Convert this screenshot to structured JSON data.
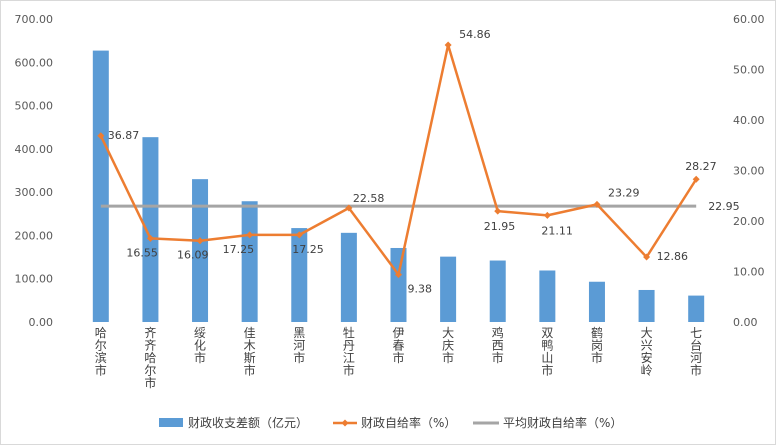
{
  "chart_data": {
    "type": "bar",
    "categories": [
      "哈尔滨市",
      "齐齐哈尔市",
      "绥化市",
      "佳木斯市",
      "黑河市",
      "牡丹江市",
      "伊春市",
      "大庆市",
      "鸡西市",
      "双鸭山市",
      "鹤岗市",
      "大兴安岭",
      "七台河市"
    ],
    "series": [
      {
        "name": "财政收支差额（亿元）",
        "type": "bar",
        "axis": "left",
        "color": "#5B9BD5",
        "values": [
          627,
          427,
          330,
          279,
          217,
          206,
          171,
          151,
          142,
          119,
          93,
          74,
          61
        ]
      },
      {
        "name": "财政自给率（%）",
        "type": "line",
        "axis": "right",
        "color": "#ED7D31",
        "values": [
          36.87,
          16.55,
          16.09,
          17.25,
          17.25,
          22.58,
          9.38,
          54.86,
          21.95,
          21.11,
          23.29,
          12.86,
          28.27
        ],
        "labels": [
          "36.87",
          "16.55",
          "16.09",
          "17.25",
          "17.25",
          "22.58",
          "9.38",
          "54.86",
          "21.95",
          "21.11",
          "23.29",
          "12.86",
          "28.27"
        ]
      },
      {
        "name": "平均财政自给率（%）",
        "type": "line",
        "axis": "right",
        "color": "#A5A5A5",
        "values": [
          22.95,
          22.95,
          22.95,
          22.95,
          22.95,
          22.95,
          22.95,
          22.95,
          22.95,
          22.95,
          22.95,
          22.95,
          22.95
        ],
        "end_label": "22.95"
      }
    ],
    "y_left": {
      "min": 0,
      "max": 700,
      "ticks": [
        "0.00",
        "100.00",
        "200.00",
        "300.00",
        "400.00",
        "500.00",
        "600.00",
        "700.00"
      ]
    },
    "y_right": {
      "min": 0,
      "max": 60,
      "ticks": [
        "0.00",
        "10.00",
        "20.00",
        "30.00",
        "40.00",
        "50.00",
        "60.00"
      ]
    },
    "grid": false,
    "legend_position": "bottom"
  }
}
